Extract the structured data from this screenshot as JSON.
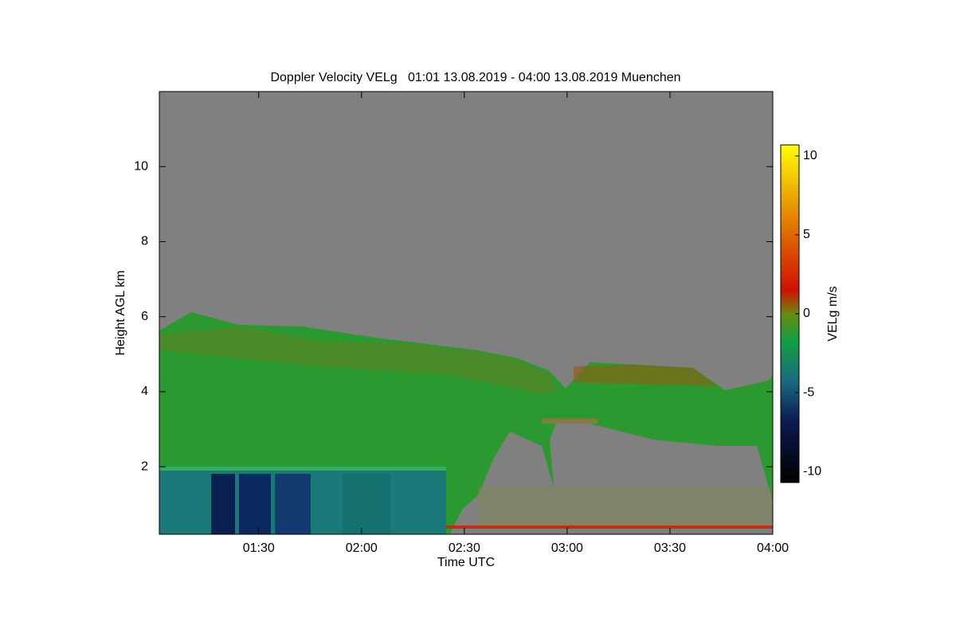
{
  "chart_data": {
    "type": "heatmap",
    "title": "Doppler Velocity VELg   01:01 13.08.2019 - 04:00 13.08.2019 Muenchen",
    "x_label": "Time UTC",
    "y_label": "Height AGL km",
    "xlim": [
      "01:01",
      "04:00"
    ],
    "xticks": [
      "01:30",
      "02:00",
      "02:30",
      "03:00",
      "03:30",
      "04:00"
    ],
    "ylim": [
      0.2,
      12
    ],
    "yticks": [
      2,
      4,
      6,
      8,
      10
    ],
    "colorbar": {
      "label": "VELg m/s",
      "lim": [
        -10.7,
        10.7
      ],
      "ticks": [
        -10,
        -5,
        0,
        5,
        10
      ]
    }
  }
}
